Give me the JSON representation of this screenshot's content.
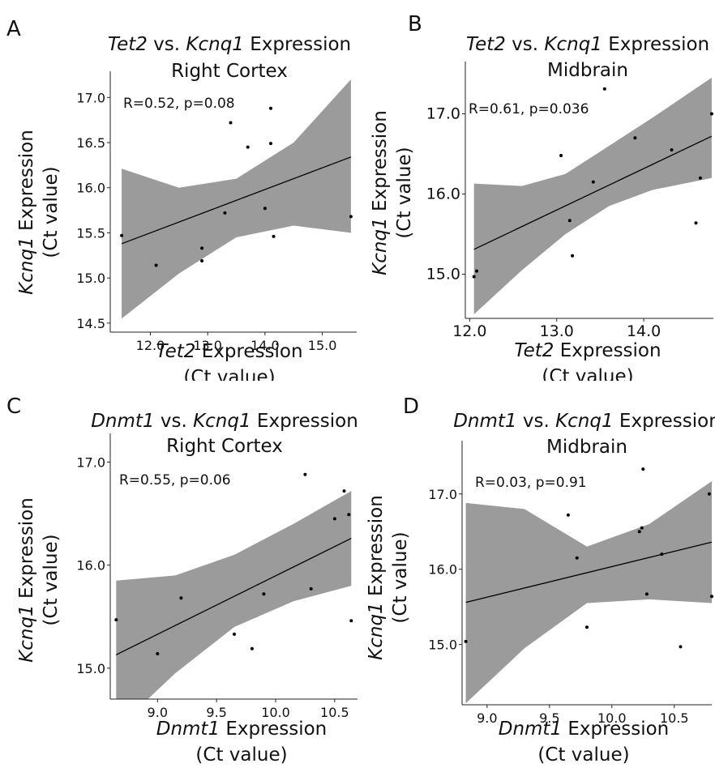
{
  "chart_data": [
    {
      "type": "scatter",
      "panel_label": "A",
      "title": {
        "gene_x": "Tet2",
        "mid": " vs. ",
        "gene_y": "Kcnq1",
        "suffix": " Expression",
        "line2": "Right Cortex"
      },
      "xlabel": {
        "gene": "Tet2",
        "rest": " Expression",
        "line2": "(Ct value)"
      },
      "ylabel": {
        "gene": "Kcnq1",
        "rest": " Expression",
        "line2": "(Ct value)"
      },
      "annotation": "R=0.52, p=0.08",
      "xlim": [
        11.3,
        15.6
      ],
      "ylim": [
        14.4,
        17.2
      ],
      "x_ticks": [
        "12.0",
        "13.0",
        "14.0",
        "15.0"
      ],
      "y_ticks": [
        "14.5",
        "15.0",
        "15.5",
        "16.0",
        "16.5",
        "17.0"
      ],
      "points": [
        {
          "x": 11.5,
          "y": 15.47
        },
        {
          "x": 12.1,
          "y": 15.14
        },
        {
          "x": 12.9,
          "y": 15.33
        },
        {
          "x": 12.9,
          "y": 15.19
        },
        {
          "x": 13.3,
          "y": 15.72
        },
        {
          "x": 13.4,
          "y": 16.72
        },
        {
          "x": 13.7,
          "y": 16.45
        },
        {
          "x": 14.0,
          "y": 15.77
        },
        {
          "x": 14.1,
          "y": 16.88
        },
        {
          "x": 14.1,
          "y": 16.49
        },
        {
          "x": 14.15,
          "y": 15.46
        },
        {
          "x": 15.5,
          "y": 15.68
        }
      ],
      "fit": {
        "x": [
          11.5,
          15.5
        ],
        "y": [
          15.38,
          16.34
        ]
      },
      "band": {
        "x": [
          11.5,
          12.5,
          13.5,
          14.5,
          15.5
        ],
        "lower": [
          14.55,
          15.05,
          15.45,
          15.58,
          15.5
        ],
        "upper": [
          16.21,
          16.0,
          16.1,
          16.5,
          17.2
        ]
      }
    },
    {
      "type": "scatter",
      "panel_label": "B",
      "title": {
        "gene_x": "Tet2",
        "mid": " vs. ",
        "gene_y": "Kcnq1",
        "suffix": " Expression",
        "line2": "Midbrain"
      },
      "xlabel": {
        "gene": "Tet2",
        "rest": " Expression",
        "line2": "(Ct value)"
      },
      "ylabel": {
        "gene": "Kcnq1",
        "rest": " Expression",
        "line2": "(Ct value)"
      },
      "annotation": "R=0.61, p=0.036",
      "xlim": [
        11.95,
        14.8
      ],
      "ylim": [
        14.45,
        17.55
      ],
      "x_ticks": [
        "12.0",
        "13.0",
        "14.0"
      ],
      "y_ticks": [
        "15.0",
        "16.0",
        "17.0"
      ],
      "points": [
        {
          "x": 12.05,
          "y": 14.97
        },
        {
          "x": 12.08,
          "y": 15.04
        },
        {
          "x": 13.05,
          "y": 16.48
        },
        {
          "x": 13.15,
          "y": 15.67
        },
        {
          "x": 13.18,
          "y": 15.23
        },
        {
          "x": 13.42,
          "y": 16.15
        },
        {
          "x": 13.55,
          "y": 17.31
        },
        {
          "x": 13.9,
          "y": 16.7
        },
        {
          "x": 14.32,
          "y": 16.55
        },
        {
          "x": 14.6,
          "y": 15.64
        },
        {
          "x": 14.65,
          "y": 16.2
        },
        {
          "x": 14.78,
          "y": 17.0
        }
      ],
      "fit": {
        "x": [
          12.05,
          14.78
        ],
        "y": [
          15.31,
          16.72
        ]
      },
      "band": {
        "x": [
          12.05,
          12.6,
          13.1,
          13.6,
          14.1,
          14.78
        ],
        "lower": [
          14.5,
          15.05,
          15.5,
          15.85,
          16.05,
          16.2
        ],
        "upper": [
          16.13,
          16.1,
          16.25,
          16.6,
          16.95,
          17.45
        ]
      }
    },
    {
      "type": "scatter",
      "panel_label": "C",
      "title": {
        "gene_x": "Dnmt1",
        "mid": " vs. ",
        "gene_y": "Kcnq1",
        "suffix": " Expression",
        "line2": "Right Cortex"
      },
      "xlabel": {
        "gene": "Dnmt1",
        "rest": " Expression",
        "line2": "(Ct value)"
      },
      "ylabel": {
        "gene": "Kcnq1",
        "rest": " Expression",
        "line2": "(Ct value)"
      },
      "annotation": "R=0.55, p=0.06",
      "xlim": [
        8.6,
        10.7
      ],
      "ylim": [
        14.7,
        17.2
      ],
      "x_ticks": [
        "9.0",
        "9.5",
        "10.0",
        "10.5"
      ],
      "y_ticks": [
        "15.0",
        "16.0",
        "17.0"
      ],
      "points": [
        {
          "x": 8.65,
          "y": 15.47
        },
        {
          "x": 9.0,
          "y": 15.14
        },
        {
          "x": 9.2,
          "y": 15.68
        },
        {
          "x": 9.65,
          "y": 15.33
        },
        {
          "x": 9.8,
          "y": 15.19
        },
        {
          "x": 9.9,
          "y": 15.72
        },
        {
          "x": 10.25,
          "y": 16.88
        },
        {
          "x": 10.3,
          "y": 15.77
        },
        {
          "x": 10.5,
          "y": 16.45
        },
        {
          "x": 10.58,
          "y": 16.72
        },
        {
          "x": 10.62,
          "y": 16.49
        },
        {
          "x": 10.64,
          "y": 15.46
        }
      ],
      "fit": {
        "x": [
          8.65,
          10.64
        ],
        "y": [
          15.13,
          16.26
        ]
      },
      "band": {
        "x": [
          8.65,
          9.15,
          9.65,
          10.15,
          10.64
        ],
        "lower": [
          14.41,
          14.95,
          15.4,
          15.65,
          15.8
        ],
        "upper": [
          15.85,
          15.9,
          16.1,
          16.4,
          16.72
        ]
      }
    },
    {
      "type": "scatter",
      "panel_label": "D",
      "title": {
        "gene_x": "Dnmt1",
        "mid": " vs. ",
        "gene_y": "Kcnq1",
        "suffix": " Expression",
        "line2": "Midbrain"
      },
      "xlabel": {
        "gene": "Dnmt1",
        "rest": " Expression",
        "line2": "(Ct value)"
      },
      "ylabel": {
        "gene": "Kcnq1",
        "rest": " Expression",
        "line2": "(Ct value)"
      },
      "annotation": "R=0.03, p=0.91",
      "xlim": [
        8.8,
        10.8
      ],
      "ylim": [
        14.2,
        17.6
      ],
      "x_ticks": [
        "9.0",
        "9.5",
        "10.0",
        "10.5"
      ],
      "y_ticks": [
        "15.0",
        "16.0",
        "17.0"
      ],
      "points": [
        {
          "x": 8.83,
          "y": 15.04
        },
        {
          "x": 9.65,
          "y": 16.72
        },
        {
          "x": 9.72,
          "y": 16.15
        },
        {
          "x": 9.8,
          "y": 15.23
        },
        {
          "x": 10.22,
          "y": 16.5
        },
        {
          "x": 10.24,
          "y": 16.55
        },
        {
          "x": 10.25,
          "y": 17.33
        },
        {
          "x": 10.28,
          "y": 15.67
        },
        {
          "x": 10.4,
          "y": 16.2
        },
        {
          "x": 10.55,
          "y": 14.97
        },
        {
          "x": 10.78,
          "y": 17.0
        },
        {
          "x": 10.8,
          "y": 15.64
        }
      ],
      "fit": {
        "x": [
          8.83,
          10.8
        ],
        "y": [
          15.56,
          16.36
        ]
      },
      "band": {
        "x": [
          8.83,
          9.3,
          9.8,
          10.3,
          10.8
        ],
        "lower": [
          14.22,
          14.95,
          15.55,
          15.6,
          15.55
        ],
        "upper": [
          16.88,
          16.8,
          16.3,
          16.6,
          17.17
        ]
      }
    }
  ]
}
